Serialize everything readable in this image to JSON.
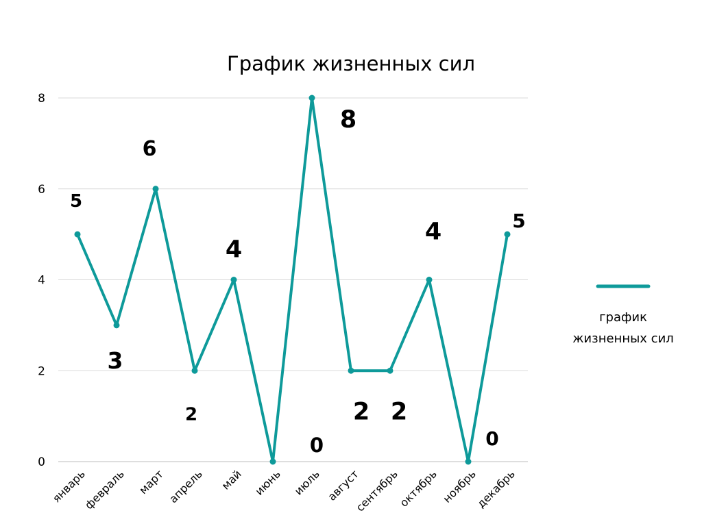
{
  "chart_data": {
    "type": "line",
    "title": "График жизненных сил",
    "categories": [
      "январь",
      "февраль",
      "март",
      "апрель",
      "май",
      "июнь",
      "июль",
      "август",
      "сентябрь",
      "октябрь",
      "ноябрь",
      "декабрь"
    ],
    "series": [
      {
        "name": "график жизненных сил",
        "values": [
          5,
          3,
          6,
          2,
          4,
          0,
          8,
          2,
          2,
          4,
          0,
          5
        ],
        "color": "#0e9a9a"
      }
    ],
    "data_labels": [
      "5",
      "3",
      "6",
      "2",
      "4",
      "0",
      "8",
      "2",
      "2",
      "4",
      "0",
      "5"
    ],
    "yticks": [
      "0",
      "2",
      "4",
      "6",
      "8"
    ],
    "ylim": [
      0,
      8
    ],
    "grid": true,
    "legend_position": "right",
    "legend_label_lines": [
      "график",
      "жизненных сил"
    ]
  }
}
